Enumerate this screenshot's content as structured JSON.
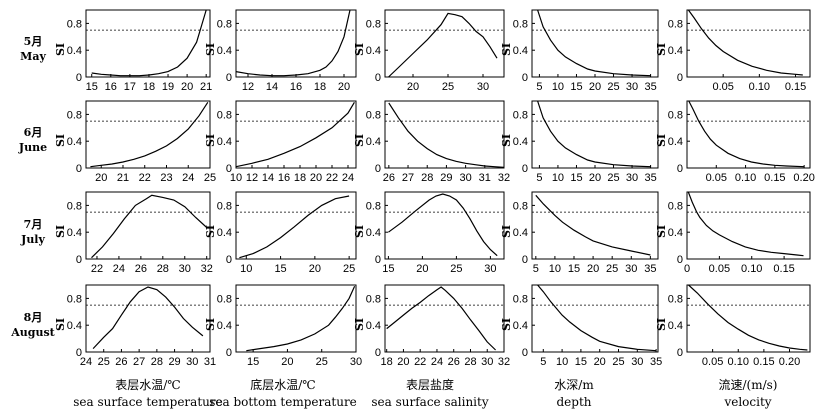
{
  "threshold": 0.7,
  "rows": [
    {
      "label_cn": "5月",
      "label_en": "May"
    },
    {
      "label_cn": "6月",
      "label_en": "June"
    },
    {
      "label_cn": "7月",
      "label_en": "July"
    },
    {
      "label_cn": "8月",
      "label_en": "August"
    }
  ],
  "columns": [
    {
      "xlabel_cn": "表层水温/℃",
      "xlabel_en": "sea surface temperature"
    },
    {
      "xlabel_cn": "底层水温/℃",
      "xlabel_en": "sea bottom temperature"
    },
    {
      "xlabel_cn": "表层盐度",
      "xlabel_en": "sea surface salinity"
    },
    {
      "xlabel_cn": "水深/m",
      "xlabel_en": "depth"
    },
    {
      "xlabel_cn": "流速/(m/s)",
      "xlabel_en": "velocity"
    }
  ],
  "chart_data": [
    {
      "type": "line",
      "row": 0,
      "col": 0,
      "ylabel": "SI",
      "xlim": [
        14.7,
        21.2
      ],
      "ylim": [
        0,
        1
      ],
      "yticks": [
        0,
        0.4,
        0.8
      ],
      "xticks": [
        15,
        16,
        17,
        18,
        19,
        20,
        21
      ],
      "x": [
        15,
        15.5,
        16,
        16.5,
        17,
        17.5,
        18,
        18.5,
        19,
        19.5,
        20,
        20.5,
        21
      ],
      "y": [
        0.06,
        0.04,
        0.03,
        0.02,
        0.02,
        0.02,
        0.03,
        0.05,
        0.08,
        0.15,
        0.28,
        0.52,
        1.0
      ]
    },
    {
      "type": "line",
      "row": 0,
      "col": 1,
      "ylabel": "SI",
      "xlim": [
        11,
        21
      ],
      "ylim": [
        0,
        1
      ],
      "yticks": [
        0,
        0.4,
        0.8
      ],
      "xticks": [
        12,
        14,
        16,
        18,
        20
      ],
      "x": [
        11,
        12,
        13,
        14,
        15,
        16,
        17,
        18,
        18.5,
        19,
        19.5,
        20,
        20.5
      ],
      "y": [
        0.08,
        0.05,
        0.03,
        0.02,
        0.02,
        0.03,
        0.05,
        0.1,
        0.15,
        0.24,
        0.38,
        0.6,
        1.0
      ]
    },
    {
      "type": "line",
      "row": 0,
      "col": 2,
      "ylabel": "SI",
      "xlim": [
        16,
        33
      ],
      "ylim": [
        0,
        1
      ],
      "yticks": [
        0,
        0.4,
        0.8
      ],
      "xticks": [
        20,
        25,
        30
      ],
      "x": [
        16.5,
        18,
        20,
        22,
        24,
        25,
        26,
        27,
        28,
        29,
        30,
        31,
        32
      ],
      "y": [
        0.0,
        0.15,
        0.35,
        0.55,
        0.78,
        0.95,
        0.93,
        0.9,
        0.8,
        0.68,
        0.6,
        0.45,
        0.28
      ]
    },
    {
      "type": "line",
      "row": 0,
      "col": 3,
      "ylabel": "SI",
      "xlim": [
        3,
        37
      ],
      "ylim": [
        0,
        1
      ],
      "yticks": [
        0,
        0.4,
        0.8
      ],
      "xticks": [
        5,
        10,
        15,
        20,
        25,
        30,
        35
      ],
      "x": [
        4.5,
        6,
        8,
        10,
        12,
        15,
        18,
        20,
        25,
        30,
        35
      ],
      "y": [
        1.0,
        0.75,
        0.55,
        0.4,
        0.3,
        0.2,
        0.12,
        0.09,
        0.05,
        0.03,
        0.02
      ]
    },
    {
      "type": "line",
      "row": 0,
      "col": 4,
      "ylabel": "SI",
      "xlim": [
        0,
        0.17
      ],
      "ylim": [
        0,
        1
      ],
      "yticks": [
        0,
        0.4,
        0.8
      ],
      "xticks": [
        0.05,
        0.1,
        0.15
      ],
      "xtick_labels": [
        "0.05",
        "0.10",
        "0.15"
      ],
      "x": [
        0.002,
        0.01,
        0.02,
        0.03,
        0.04,
        0.05,
        0.07,
        0.09,
        0.11,
        0.13,
        0.15,
        0.16
      ],
      "y": [
        1.0,
        0.88,
        0.72,
        0.58,
        0.47,
        0.38,
        0.25,
        0.16,
        0.1,
        0.06,
        0.04,
        0.03
      ]
    },
    {
      "type": "line",
      "row": 1,
      "col": 0,
      "ylabel": "SI",
      "xlim": [
        19.3,
        25
      ],
      "ylim": [
        0,
        1
      ],
      "yticks": [
        0,
        0.4,
        0.8
      ],
      "xticks": [
        20,
        21,
        22,
        23,
        24,
        25
      ],
      "x": [
        19.5,
        20,
        20.5,
        21,
        21.5,
        22,
        22.5,
        23,
        23.5,
        24,
        24.5,
        24.9
      ],
      "y": [
        0.02,
        0.04,
        0.06,
        0.09,
        0.13,
        0.18,
        0.25,
        0.33,
        0.44,
        0.58,
        0.78,
        0.98
      ]
    },
    {
      "type": "line",
      "row": 1,
      "col": 1,
      "ylabel": "SI",
      "xlim": [
        10,
        25
      ],
      "ylim": [
        0,
        1
      ],
      "yticks": [
        0,
        0.4,
        0.8
      ],
      "xticks": [
        10,
        12,
        14,
        16,
        18,
        20,
        22,
        24
      ],
      "x": [
        10,
        12,
        14,
        16,
        18,
        20,
        22,
        24,
        24.8
      ],
      "y": [
        0.02,
        0.07,
        0.13,
        0.22,
        0.32,
        0.45,
        0.6,
        0.82,
        0.98
      ]
    },
    {
      "type": "line",
      "row": 1,
      "col": 2,
      "ylabel": "SI",
      "xlim": [
        25.8,
        32
      ],
      "ylim": [
        0,
        1
      ],
      "yticks": [
        0,
        0.4,
        0.8
      ],
      "xticks": [
        26,
        27,
        28,
        29,
        30,
        31,
        32
      ],
      "x": [
        26,
        26.5,
        27,
        27.5,
        28,
        28.5,
        29,
        29.5,
        30,
        30.5,
        31,
        31.5,
        32
      ],
      "y": [
        0.97,
        0.75,
        0.55,
        0.4,
        0.29,
        0.2,
        0.14,
        0.1,
        0.07,
        0.05,
        0.03,
        0.02,
        0.01
      ]
    },
    {
      "type": "line",
      "row": 1,
      "col": 3,
      "ylabel": "SI",
      "xlim": [
        3,
        37
      ],
      "ylim": [
        0,
        1
      ],
      "yticks": [
        0,
        0.4,
        0.8
      ],
      "xticks": [
        5,
        10,
        15,
        20,
        25,
        30,
        35
      ],
      "x": [
        4.5,
        6,
        8,
        10,
        12,
        15,
        18,
        20,
        25,
        30,
        35
      ],
      "y": [
        1.0,
        0.75,
        0.55,
        0.4,
        0.3,
        0.2,
        0.12,
        0.09,
        0.05,
        0.03,
        0.02
      ]
    },
    {
      "type": "line",
      "row": 1,
      "col": 4,
      "ylabel": "SI",
      "xlim": [
        0,
        0.21
      ],
      "ylim": [
        0,
        1
      ],
      "yticks": [
        0,
        0.4,
        0.8
      ],
      "xticks": [
        0.05,
        0.1,
        0.15,
        0.2
      ],
      "xtick_labels": [
        "0.05",
        "0.10",
        "0.15",
        "0.20"
      ],
      "x": [
        0.003,
        0.01,
        0.02,
        0.03,
        0.04,
        0.05,
        0.07,
        0.09,
        0.11,
        0.13,
        0.15,
        0.17,
        0.2
      ],
      "y": [
        1.0,
        0.88,
        0.7,
        0.55,
        0.43,
        0.34,
        0.22,
        0.14,
        0.09,
        0.06,
        0.04,
        0.03,
        0.02
      ]
    },
    {
      "type": "line",
      "row": 2,
      "col": 0,
      "ylabel": "SI",
      "xlim": [
        21,
        32.3
      ],
      "ylim": [
        0,
        1
      ],
      "yticks": [
        0,
        0.4,
        0.8
      ],
      "xticks": [
        22,
        24,
        26,
        28,
        30,
        32
      ],
      "x": [
        21.5,
        22.5,
        23.5,
        24.5,
        25.5,
        26.5,
        27,
        28,
        29,
        30,
        31,
        32
      ],
      "y": [
        0.02,
        0.18,
        0.38,
        0.6,
        0.8,
        0.9,
        0.95,
        0.92,
        0.88,
        0.78,
        0.62,
        0.47
      ]
    },
    {
      "type": "line",
      "row": 2,
      "col": 1,
      "ylabel": "SI",
      "xlim": [
        8.5,
        26
      ],
      "ylim": [
        0,
        1
      ],
      "yticks": [
        0,
        0.4,
        0.8
      ],
      "xticks": [
        10,
        15,
        20,
        25
      ],
      "x": [
        9,
        11,
        13,
        15,
        17,
        19,
        21,
        23,
        25
      ],
      "y": [
        0.02,
        0.08,
        0.18,
        0.32,
        0.48,
        0.65,
        0.8,
        0.9,
        0.94
      ]
    },
    {
      "type": "line",
      "row": 2,
      "col": 2,
      "ylabel": "SI",
      "xlim": [
        14.5,
        32
      ],
      "ylim": [
        0,
        1
      ],
      "yticks": [
        0,
        0.4,
        0.8
      ],
      "xticks": [
        15,
        20,
        25,
        30
      ],
      "x": [
        15,
        17,
        19,
        21,
        22,
        23,
        24,
        25,
        26,
        27,
        28,
        29,
        30,
        31
      ],
      "y": [
        0.4,
        0.55,
        0.72,
        0.88,
        0.94,
        0.97,
        0.94,
        0.88,
        0.76,
        0.6,
        0.42,
        0.26,
        0.14,
        0.05
      ]
    },
    {
      "type": "line",
      "row": 2,
      "col": 3,
      "ylabel": "SI",
      "xlim": [
        4,
        37
      ],
      "ylim": [
        0,
        1
      ],
      "yticks": [
        0,
        0.4,
        0.8
      ],
      "xticks": [
        5,
        10,
        15,
        20,
        25,
        30,
        35
      ],
      "x": [
        5,
        7,
        10,
        12,
        15,
        18,
        20,
        25,
        30,
        35
      ],
      "y": [
        0.95,
        0.82,
        0.65,
        0.55,
        0.43,
        0.33,
        0.27,
        0.18,
        0.12,
        0.06
      ]
    },
    {
      "type": "line",
      "row": 2,
      "col": 4,
      "ylabel": "SI",
      "xlim": [
        0,
        0.19
      ],
      "ylim": [
        0,
        1
      ],
      "yticks": [
        0,
        0.4,
        0.8
      ],
      "xticks": [
        0,
        0.05,
        0.1,
        0.15
      ],
      "xtick_labels": [
        "0",
        "0.05",
        "0.10",
        "0.15"
      ],
      "x": [
        0.002,
        0.008,
        0.015,
        0.02,
        0.03,
        0.04,
        0.05,
        0.07,
        0.09,
        0.11,
        0.13,
        0.15,
        0.17,
        0.18
      ],
      "y": [
        1.0,
        0.85,
        0.7,
        0.62,
        0.5,
        0.42,
        0.36,
        0.26,
        0.18,
        0.13,
        0.1,
        0.08,
        0.06,
        0.05
      ]
    },
    {
      "type": "line",
      "row": 3,
      "col": 0,
      "ylabel": "SI",
      "xlim": [
        24,
        31
      ],
      "ylim": [
        0,
        1
      ],
      "yticks": [
        0,
        0.4,
        0.8
      ],
      "xticks": [
        24,
        25,
        26,
        27,
        28,
        29,
        30,
        31
      ],
      "x": [
        24.4,
        25,
        25.5,
        26,
        26.5,
        27,
        27.5,
        28,
        28.5,
        29,
        29.5,
        30,
        30.6
      ],
      "y": [
        0.05,
        0.22,
        0.35,
        0.55,
        0.75,
        0.9,
        0.97,
        0.93,
        0.82,
        0.67,
        0.5,
        0.37,
        0.24
      ]
    },
    {
      "type": "line",
      "row": 3,
      "col": 1,
      "ylabel": "SI",
      "xlim": [
        12.5,
        30
      ],
      "ylim": [
        0,
        1
      ],
      "yticks": [
        0,
        0.4,
        0.8
      ],
      "xticks": [
        15,
        20,
        25,
        30
      ],
      "x": [
        14,
        16,
        18,
        20,
        22,
        24,
        26,
        27,
        28,
        29,
        29.8
      ],
      "y": [
        0.02,
        0.05,
        0.08,
        0.12,
        0.18,
        0.27,
        0.4,
        0.52,
        0.65,
        0.8,
        0.98
      ]
    },
    {
      "type": "line",
      "row": 3,
      "col": 2,
      "ylabel": "SI",
      "xlim": [
        17.8,
        32
      ],
      "ylim": [
        0,
        1
      ],
      "yticks": [
        0,
        0.4,
        0.8
      ],
      "xticks": [
        18,
        20,
        22,
        24,
        26,
        28,
        30,
        32
      ],
      "x": [
        18,
        19,
        20,
        21,
        22,
        23,
        24,
        24.5,
        25,
        26,
        27,
        28,
        29,
        30,
        31
      ],
      "y": [
        0.35,
        0.45,
        0.55,
        0.65,
        0.74,
        0.84,
        0.93,
        0.97,
        0.92,
        0.8,
        0.65,
        0.48,
        0.32,
        0.15,
        0.03
      ]
    },
    {
      "type": "line",
      "row": 3,
      "col": 3,
      "ylabel": "SI",
      "xlim": [
        2,
        35.5
      ],
      "ylim": [
        0,
        1
      ],
      "yticks": [
        0,
        0.4,
        0.8
      ],
      "xticks": [
        5,
        10,
        15,
        20,
        25,
        30,
        35
      ],
      "x": [
        3.5,
        5,
        7,
        10,
        12,
        15,
        18,
        20,
        25,
        30,
        35
      ],
      "y": [
        1.0,
        0.9,
        0.75,
        0.55,
        0.45,
        0.32,
        0.22,
        0.16,
        0.08,
        0.04,
        0.02
      ]
    },
    {
      "type": "line",
      "row": 3,
      "col": 4,
      "ylabel": "SI",
      "xlim": [
        0,
        0.24
      ],
      "ylim": [
        0,
        1
      ],
      "yticks": [
        0,
        0.4,
        0.8
      ],
      "xticks": [
        0.05,
        0.1,
        0.15,
        0.2
      ],
      "xtick_labels": [
        "0.05",
        "0.10",
        "0.15",
        "0.20"
      ],
      "x": [
        0.003,
        0.02,
        0.04,
        0.06,
        0.08,
        0.1,
        0.12,
        0.14,
        0.16,
        0.18,
        0.2,
        0.22,
        0.235
      ],
      "y": [
        1.0,
        0.88,
        0.72,
        0.57,
        0.44,
        0.34,
        0.25,
        0.18,
        0.13,
        0.09,
        0.06,
        0.04,
        0.03
      ]
    }
  ]
}
